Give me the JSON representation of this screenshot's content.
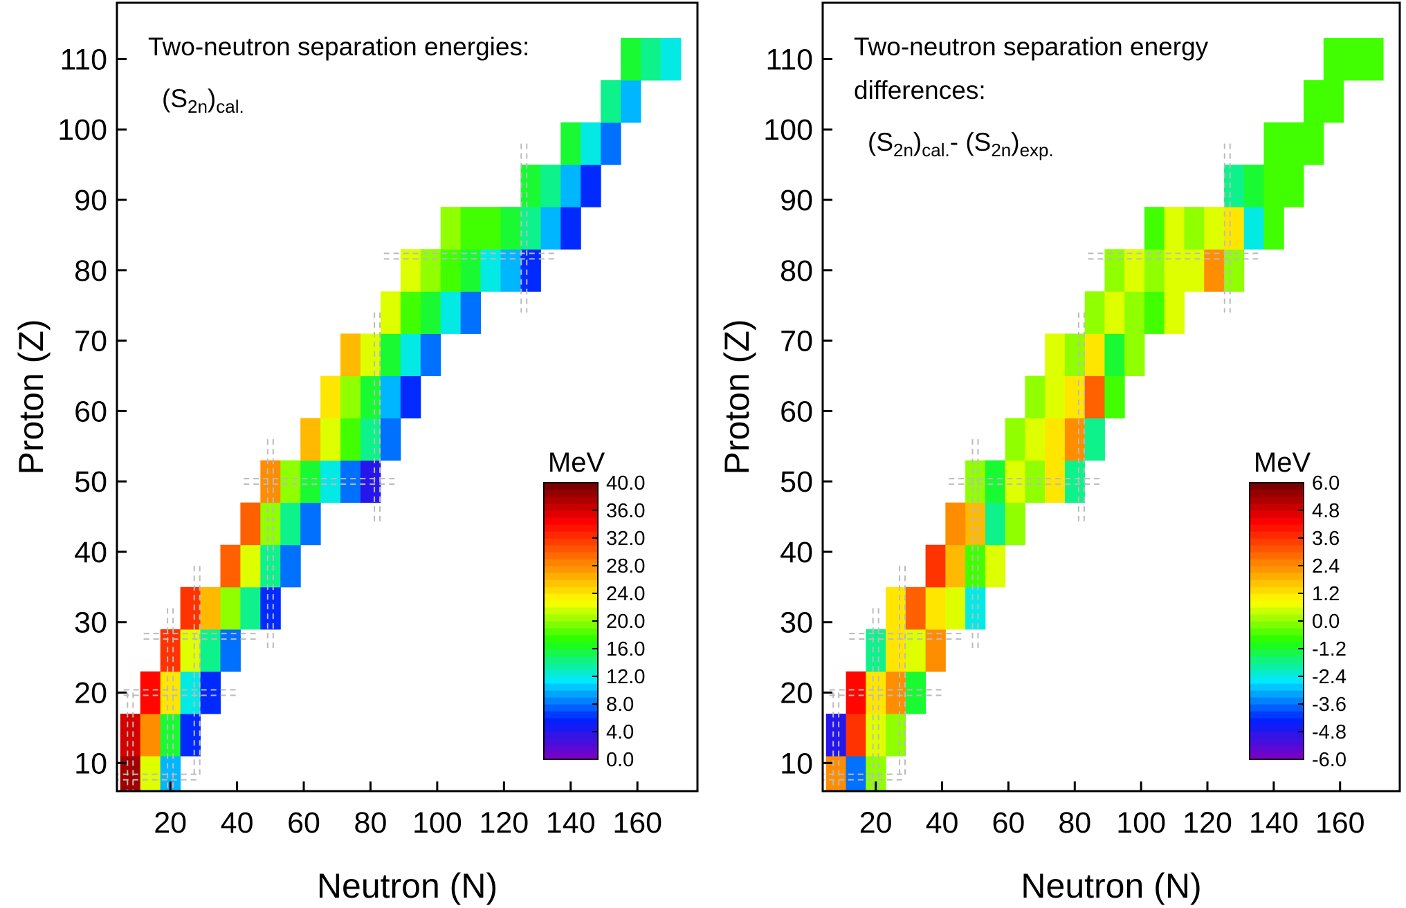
{
  "chart_data": [
    {
      "type": "heatmap",
      "annotation": {
        "lines": [
          "Two-neutron separation energies:"
        ],
        "formula": [
          {
            "text": "(S"
          },
          {
            "text": "2n",
            "sub": true
          },
          {
            "text": ")"
          },
          {
            "text": "cal.",
            "sub": true
          }
        ]
      },
      "xlabel": "Neutron (N)",
      "ylabel": "Proton (Z)",
      "xlim": [
        4,
        178
      ],
      "ylim": [
        6,
        118
      ],
      "xticks": [
        20,
        40,
        60,
        80,
        100,
        120,
        140,
        160
      ],
      "yticks": [
        10,
        20,
        30,
        40,
        50,
        60,
        70,
        80,
        90,
        100,
        110
      ],
      "magic_numbers": [
        8,
        20,
        28,
        50,
        82,
        126
      ],
      "colorbar": {
        "title": "MeV",
        "lim": [
          0,
          40
        ],
        "ticks": [
          {
            "value": 40,
            "label": "40.0"
          },
          {
            "value": 36,
            "label": "36.0"
          },
          {
            "value": 32,
            "label": "32.0"
          },
          {
            "value": 28,
            "label": "28.0"
          },
          {
            "value": 24,
            "label": "24.0"
          },
          {
            "value": 20,
            "label": "20.0"
          },
          {
            "value": 16,
            "label": "16.0"
          },
          {
            "value": 12,
            "label": "12.0"
          },
          {
            "value": 8,
            "label": "8.0"
          },
          {
            "value": 4,
            "label": "4.0"
          },
          {
            "value": 0,
            "label": "0.0"
          }
        ]
      },
      "colormap": [
        "#8000c0",
        "#0020ff",
        "#00e8ff",
        "#20ff00",
        "#ffff00",
        "#ff8000",
        "#ff0000",
        "#700000"
      ],
      "x": [
        8,
        14,
        20,
        8,
        14,
        20,
        26,
        14,
        20,
        26,
        32,
        20,
        26,
        32,
        38,
        26,
        32,
        38,
        44,
        50,
        38,
        44,
        50,
        56,
        44,
        50,
        56,
        62,
        50,
        56,
        62,
        68,
        74,
        80,
        62,
        68,
        74,
        80,
        86,
        68,
        74,
        80,
        86,
        92,
        74,
        80,
        86,
        92,
        98,
        86,
        92,
        98,
        104,
        110,
        92,
        98,
        104,
        110,
        116,
        122,
        128,
        104,
        110,
        116,
        122,
        128,
        134,
        140,
        128,
        134,
        140,
        146,
        140,
        146,
        152,
        152,
        158,
        158,
        164,
        170
      ],
      "y": [
        8,
        8,
        8,
        14,
        14,
        14,
        14,
        20,
        20,
        20,
        20,
        26,
        26,
        26,
        26,
        32,
        32,
        32,
        32,
        32,
        38,
        38,
        38,
        38,
        44,
        44,
        44,
        44,
        50,
        50,
        50,
        50,
        50,
        50,
        56,
        56,
        56,
        56,
        56,
        62,
        62,
        62,
        62,
        62,
        68,
        68,
        68,
        68,
        68,
        74,
        74,
        74,
        74,
        74,
        80,
        80,
        80,
        80,
        80,
        80,
        80,
        86,
        86,
        86,
        86,
        86,
        86,
        86,
        92,
        92,
        92,
        92,
        98,
        98,
        98,
        104,
        104,
        110,
        110,
        110
      ],
      "values": [
        38,
        22,
        10,
        36,
        28,
        16,
        6,
        34,
        24,
        12,
        6,
        32,
        22,
        14,
        8,
        32,
        26,
        20,
        14,
        6,
        30,
        22,
        14,
        8,
        30,
        20,
        14,
        8,
        28,
        20,
        16,
        12,
        8,
        4,
        26,
        22,
        18,
        14,
        8,
        24,
        20,
        16,
        10,
        6,
        26,
        22,
        16,
        12,
        8,
        22,
        18,
        16,
        12,
        8,
        22,
        20,
        18,
        16,
        12,
        10,
        6,
        20,
        18,
        18,
        16,
        14,
        10,
        6,
        16,
        14,
        10,
        6,
        16,
        12,
        8,
        14,
        10,
        16,
        14,
        12
      ]
    },
    {
      "type": "heatmap",
      "annotation": {
        "lines": [
          "Two-neutron separation energy",
          "differences:"
        ],
        "formula": [
          {
            "text": "(S"
          },
          {
            "text": "2n",
            "sub": true
          },
          {
            "text": ")"
          },
          {
            "text": "cal.",
            "sub": true
          },
          {
            "text": "- (S"
          },
          {
            "text": "2n",
            "sub": true
          },
          {
            "text": ")"
          },
          {
            "text": "exp.",
            "sub": true
          }
        ]
      },
      "xlabel": "Neutron (N)",
      "ylabel": "Proton (Z)",
      "xlim": [
        4,
        178
      ],
      "ylim": [
        6,
        118
      ],
      "xticks": [
        20,
        40,
        60,
        80,
        100,
        120,
        140,
        160
      ],
      "yticks": [
        10,
        20,
        30,
        40,
        50,
        60,
        70,
        80,
        90,
        100,
        110
      ],
      "magic_numbers": [
        8,
        20,
        28,
        50,
        82,
        126
      ],
      "colorbar": {
        "title": "MeV",
        "lim": [
          -6,
          6
        ],
        "ticks": [
          {
            "value": 6,
            "label": "6.0"
          },
          {
            "value": 4.8,
            "label": "4.8"
          },
          {
            "value": 3.6,
            "label": "3.6"
          },
          {
            "value": 2.4,
            "label": "2.4"
          },
          {
            "value": 1.2,
            "label": "1.2"
          },
          {
            "value": 0,
            "label": "0.0"
          },
          {
            "value": -1.2,
            "label": "-1.2"
          },
          {
            "value": -2.4,
            "label": "-2.4"
          },
          {
            "value": -3.6,
            "label": "-3.6"
          },
          {
            "value": -4.8,
            "label": "-4.8"
          },
          {
            "value": -6,
            "label": "-6.0"
          }
        ]
      },
      "colormap": [
        "#8000c0",
        "#0020ff",
        "#00e8ff",
        "#20ff00",
        "#ffff00",
        "#ff8000",
        "#ff0000",
        "#700000"
      ],
      "x": [
        8,
        14,
        20,
        8,
        14,
        20,
        26,
        14,
        20,
        26,
        32,
        20,
        26,
        32,
        38,
        26,
        32,
        38,
        44,
        50,
        38,
        44,
        50,
        56,
        44,
        50,
        56,
        62,
        50,
        56,
        62,
        68,
        74,
        80,
        62,
        68,
        74,
        80,
        86,
        68,
        74,
        80,
        86,
        92,
        74,
        80,
        86,
        92,
        98,
        86,
        92,
        98,
        104,
        110,
        92,
        98,
        104,
        110,
        116,
        122,
        128,
        104,
        110,
        116,
        122,
        128,
        134,
        140,
        128,
        134,
        140,
        146,
        140,
        146,
        152,
        152,
        158,
        158,
        164,
        170
      ],
      "y": [
        8,
        8,
        8,
        14,
        14,
        14,
        14,
        20,
        20,
        20,
        20,
        26,
        26,
        26,
        26,
        32,
        32,
        32,
        32,
        32,
        38,
        38,
        38,
        38,
        44,
        44,
        44,
        44,
        50,
        50,
        50,
        50,
        50,
        50,
        56,
        56,
        56,
        56,
        56,
        62,
        62,
        62,
        62,
        62,
        68,
        68,
        68,
        68,
        68,
        74,
        74,
        74,
        74,
        74,
        80,
        80,
        80,
        80,
        80,
        80,
        80,
        86,
        86,
        86,
        86,
        86,
        86,
        86,
        92,
        92,
        92,
        92,
        98,
        98,
        98,
        104,
        104,
        110,
        110,
        110
      ],
      "values": [
        2.4,
        -3.6,
        0.0,
        -4.8,
        3.6,
        0.6,
        0.0,
        4.2,
        1.2,
        2.4,
        -1.2,
        -1.8,
        1.2,
        0.6,
        2.4,
        1.2,
        3.0,
        1.2,
        0.6,
        -2.4,
        3.6,
        1.8,
        -0.6,
        0.6,
        2.4,
        1.8,
        -1.8,
        0.0,
        0.0,
        -1.2,
        0.6,
        0.0,
        1.2,
        -1.8,
        0.0,
        0.6,
        1.2,
        2.4,
        -1.8,
        0.0,
        0.6,
        1.2,
        3.0,
        -0.6,
        0.6,
        0.0,
        1.2,
        -1.2,
        0.0,
        0.0,
        0.6,
        0.0,
        -0.6,
        0.6,
        0.0,
        0.6,
        0.0,
        0.6,
        0.6,
        2.4,
        0.0,
        -0.6,
        0.6,
        0.0,
        0.6,
        1.2,
        -2.4,
        -0.6,
        -1.8,
        -1.2,
        -0.6,
        -0.6,
        -0.6,
        -0.6,
        -0.6,
        -0.6,
        -0.6,
        -0.6,
        -0.6,
        -0.6
      ]
    }
  ]
}
